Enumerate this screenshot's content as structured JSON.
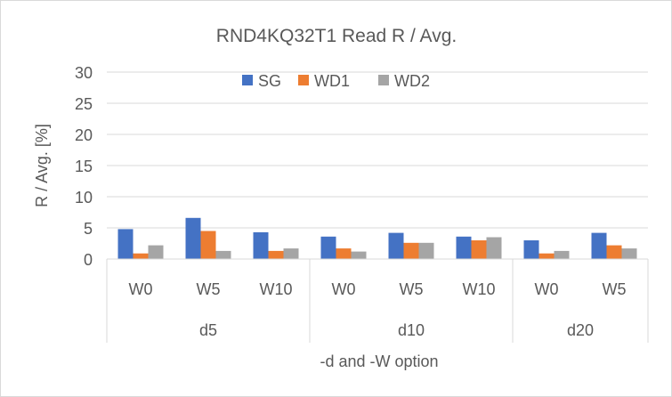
{
  "chart_data": {
    "type": "bar",
    "title": "RND4KQ32T1 Read R / Avg.",
    "xlabel": "-d and -W option",
    "ylabel": "R / Avg. [%]",
    "ylim": [
      0,
      30
    ],
    "yticks": [
      0,
      5,
      10,
      15,
      20,
      25,
      30
    ],
    "grid": true,
    "legend_position": "top-center",
    "groups": [
      {
        "label": "d5",
        "categories": [
          "W0",
          "W5",
          "W10"
        ]
      },
      {
        "label": "d10",
        "categories": [
          "W0",
          "W5",
          "W10"
        ]
      },
      {
        "label": "d20",
        "categories": [
          "W0",
          "W5"
        ]
      }
    ],
    "categories": [
      "W0",
      "W5",
      "W10",
      "W0",
      "W5",
      "W10",
      "W0",
      "W5"
    ],
    "series": [
      {
        "name": "SG",
        "color": "#4472c4",
        "values": [
          4.8,
          6.6,
          4.3,
          3.6,
          4.2,
          3.6,
          3.0,
          4.2
        ]
      },
      {
        "name": "WD1",
        "color": "#ed7d31",
        "values": [
          0.9,
          4.5,
          1.3,
          1.7,
          2.6,
          3.0,
          0.9,
          2.2
        ]
      },
      {
        "name": "WD2",
        "color": "#a5a5a5",
        "values": [
          2.2,
          1.3,
          1.7,
          1.2,
          2.6,
          3.5,
          1.3,
          1.7
        ]
      }
    ]
  }
}
